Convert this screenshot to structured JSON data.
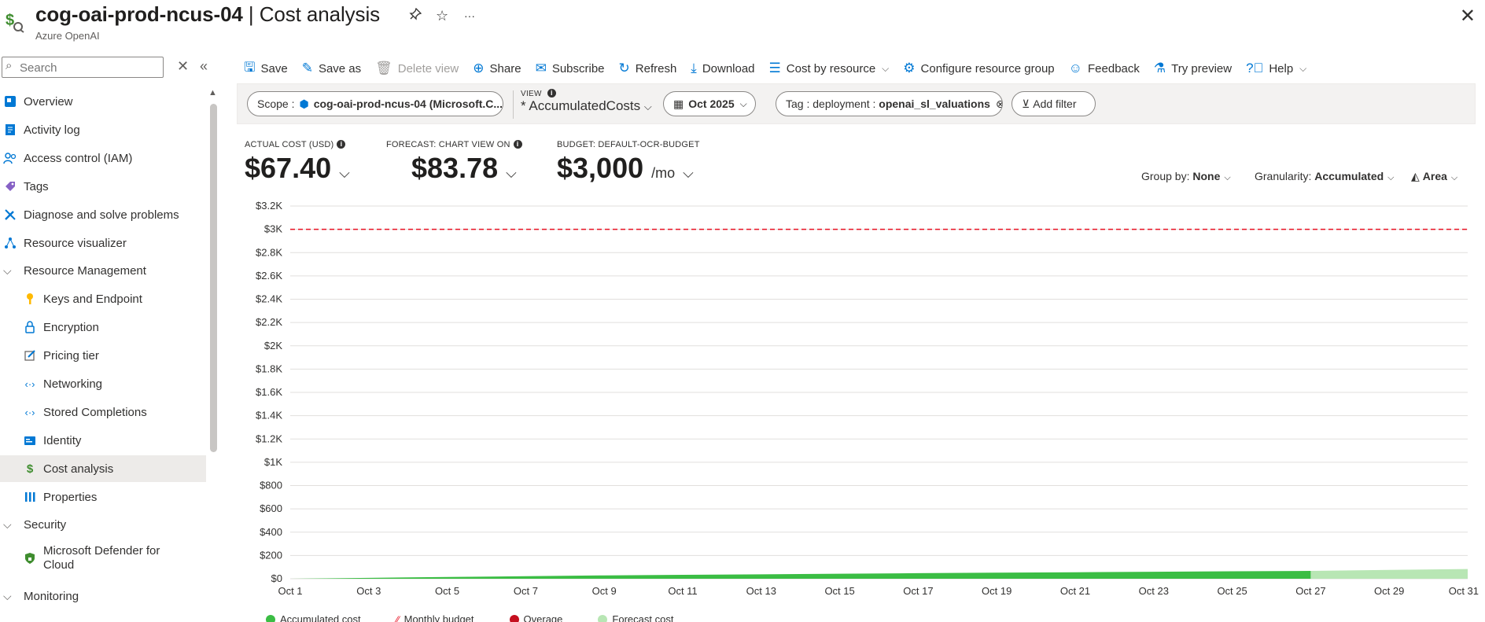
{
  "header": {
    "resource_name": "cog-oai-prod-ncus-04",
    "separator": " | ",
    "page_name": "Cost analysis",
    "subtitle": "Azure OpenAI"
  },
  "sidebar": {
    "search_placeholder": "Search",
    "items": [
      {
        "label": "Overview",
        "icon": "overview-icon",
        "level": 0
      },
      {
        "label": "Activity log",
        "icon": "activity-log-icon",
        "level": 0
      },
      {
        "label": "Access control (IAM)",
        "icon": "people-icon",
        "level": 0
      },
      {
        "label": "Tags",
        "icon": "tag-icon",
        "level": 0
      },
      {
        "label": "Diagnose and solve problems",
        "icon": "wrench-icon",
        "level": 0
      },
      {
        "label": "Resource visualizer",
        "icon": "graph-icon",
        "level": 0
      },
      {
        "label": "Resource Management",
        "icon": "chevron-down-icon",
        "level": 0,
        "group": true
      },
      {
        "label": "Keys and Endpoint",
        "icon": "key-icon",
        "level": 1
      },
      {
        "label": "Encryption",
        "icon": "lock-icon",
        "level": 1
      },
      {
        "label": "Pricing tier",
        "icon": "edit-icon",
        "level": 1
      },
      {
        "label": "Networking",
        "icon": "code-icon",
        "level": 1
      },
      {
        "label": "Stored Completions",
        "icon": "code-icon",
        "level": 1
      },
      {
        "label": "Identity",
        "icon": "identity-icon",
        "level": 1
      },
      {
        "label": "Cost analysis",
        "icon": "cost-icon",
        "level": 1,
        "active": true
      },
      {
        "label": "Properties",
        "icon": "bars-icon",
        "level": 1
      },
      {
        "label": "Security",
        "icon": "chevron-down-icon",
        "level": 0,
        "group": true
      },
      {
        "label": "Microsoft Defender for Cloud",
        "icon": "shield-icon",
        "level": 1
      },
      {
        "label": "Monitoring",
        "icon": "chevron-down-icon",
        "level": 0,
        "group": true
      }
    ]
  },
  "toolbar": {
    "save": "Save",
    "save_as": "Save as",
    "delete_view": "Delete view",
    "share": "Share",
    "subscribe": "Subscribe",
    "refresh": "Refresh",
    "download": "Download",
    "cost_by_resource": "Cost by resource",
    "configure_rg": "Configure resource group",
    "feedback": "Feedback",
    "try_preview": "Try preview",
    "help": "Help"
  },
  "filters": {
    "scope_label": "Scope :",
    "scope_value": "cog-oai-prod-ncus-04 (Microsoft.C...",
    "view_label": "VIEW",
    "view_value": "* AccumulatedCosts",
    "date": "Oct 2025",
    "tag_label": "Tag : deployment :",
    "tag_value": "openai_sl_valuations",
    "add_filter": "Add filter"
  },
  "kpis": {
    "actual_label": "ACTUAL COST (USD)",
    "actual_value": "$67.40",
    "forecast_label": "FORECAST: CHART VIEW ON",
    "forecast_value": "$83.78",
    "budget_label": "BUDGET: DEFAULT-OCR-BUDGET",
    "budget_value": "$3,000",
    "budget_unit": "/mo"
  },
  "controls": {
    "group_by_label": "Group by:",
    "group_by_value": "None",
    "granularity_label": "Granularity:",
    "granularity_value": "Accumulated",
    "chart_type": "Area"
  },
  "colors": {
    "accent": "#0078d4",
    "actual": "#3bbd44",
    "forecast": "#b8e6b4",
    "budget": "#e81123",
    "overage": "#c50f1f"
  },
  "chart_data": {
    "type": "area",
    "y_ticks": [
      "$3.2K",
      "$3K",
      "$2.8K",
      "$2.6K",
      "$2.4K",
      "$2.2K",
      "$2K",
      "$1.8K",
      "$1.6K",
      "$1.4K",
      "$1.2K",
      "$1K",
      "$800",
      "$600",
      "$400",
      "$200",
      "$0"
    ],
    "ylim": [
      0,
      3200
    ],
    "x_ticks": [
      "Oct 1",
      "Oct 3",
      "Oct 5",
      "Oct 7",
      "Oct 9",
      "Oct 11",
      "Oct 13",
      "Oct 15",
      "Oct 17",
      "Oct 19",
      "Oct 21",
      "Oct 23",
      "Oct 25",
      "Oct 27",
      "Oct 29",
      "Oct 31"
    ],
    "budget": 3000,
    "actual": {
      "name": "Accumulated cost",
      "days": [
        1,
        3,
        5,
        7,
        9,
        11,
        13,
        15,
        17,
        19,
        21,
        23,
        25,
        27
      ],
      "values": [
        0,
        8,
        15,
        22,
        29,
        34,
        38,
        43,
        48,
        52,
        56,
        60,
        64,
        67.4
      ]
    },
    "forecast": {
      "name": "Forecast cost",
      "days": [
        27,
        29,
        31
      ],
      "values": [
        67.4,
        75.6,
        83.78
      ]
    },
    "legend": [
      "Accumulated cost",
      "Monthly budget",
      "Overage",
      "Forecast cost"
    ]
  }
}
